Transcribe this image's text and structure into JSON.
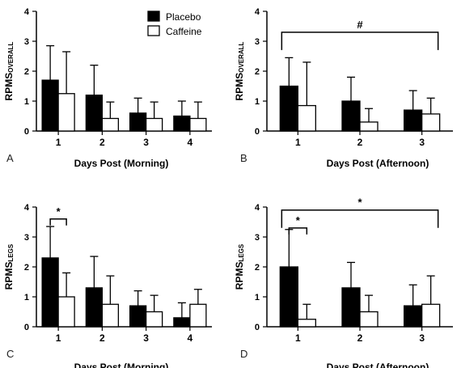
{
  "chart_data": [
    {
      "panel_label": "A",
      "type": "bar",
      "ylabel_main": "RPMS",
      "ylabel_sub": "OVERALL",
      "xlabel": "Days Post (Morning)",
      "categories": [
        "1",
        "2",
        "3",
        "4"
      ],
      "ylim": [
        0,
        4
      ],
      "yticks": [
        "0",
        "1",
        "2",
        "3",
        "4"
      ],
      "series": [
        {
          "name": "Placebo",
          "color": "#000000",
          "values": [
            1.7,
            1.2,
            0.6,
            0.5
          ],
          "error": [
            1.15,
            1.0,
            0.5,
            0.5
          ]
        },
        {
          "name": "Caffeine",
          "color": "#ffffff",
          "values": [
            1.25,
            0.42,
            0.42,
            0.42
          ],
          "error": [
            1.4,
            0.55,
            0.55,
            0.55
          ]
        }
      ],
      "legend": {
        "position": "top-right",
        "entries": [
          "Placebo",
          "Caffeine"
        ]
      },
      "brackets": []
    },
    {
      "panel_label": "B",
      "type": "bar",
      "ylabel_main": "RPMS",
      "ylabel_sub": "OVERALL",
      "xlabel": "Days Post (Afternoon)",
      "categories": [
        "1",
        "2",
        "3"
      ],
      "ylim": [
        0,
        4
      ],
      "yticks": [
        "0",
        "1",
        "2",
        "3",
        "4"
      ],
      "series": [
        {
          "name": "Placebo",
          "color": "#000000",
          "values": [
            1.5,
            1.0,
            0.7
          ],
          "error": [
            0.95,
            0.8,
            0.65
          ]
        },
        {
          "name": "Caffeine",
          "color": "#ffffff",
          "values": [
            0.85,
            0.3,
            0.57
          ],
          "error": [
            1.45,
            0.45,
            0.53
          ]
        }
      ],
      "brackets": [
        {
          "from_category": 0,
          "to_category": 2,
          "y": 3.3,
          "label": "#",
          "span": "groups"
        }
      ]
    },
    {
      "panel_label": "C",
      "type": "bar",
      "ylabel_main": "RPMS",
      "ylabel_sub": "LEGS",
      "xlabel": "Days Post (Morning)",
      "categories": [
        "1",
        "2",
        "3",
        "4"
      ],
      "ylim": [
        0,
        4
      ],
      "yticks": [
        "0",
        "1",
        "2",
        "3",
        "4"
      ],
      "series": [
        {
          "name": "Placebo",
          "color": "#000000",
          "values": [
            2.3,
            1.3,
            0.7,
            0.3
          ],
          "error": [
            1.05,
            1.05,
            0.5,
            0.5
          ]
        },
        {
          "name": "Caffeine",
          "color": "#ffffff",
          "values": [
            1.0,
            0.75,
            0.5,
            0.75
          ],
          "error": [
            0.8,
            0.95,
            0.55,
            0.5
          ]
        }
      ],
      "brackets": [
        {
          "from_category": 0,
          "to_category": 0,
          "y": 3.6,
          "label": "*",
          "span": "bars"
        }
      ]
    },
    {
      "panel_label": "D",
      "type": "bar",
      "ylabel_main": "RPMS",
      "ylabel_sub": "LEGS",
      "xlabel": "Days Post (Afternoon)",
      "categories": [
        "1",
        "2",
        "3"
      ],
      "ylim": [
        0,
        4
      ],
      "yticks": [
        "0",
        "1",
        "2",
        "3",
        "4"
      ],
      "series": [
        {
          "name": "Placebo",
          "color": "#000000",
          "values": [
            2.0,
            1.3,
            0.7
          ],
          "error": [
            1.25,
            0.85,
            0.7
          ]
        },
        {
          "name": "Caffeine",
          "color": "#ffffff",
          "values": [
            0.25,
            0.5,
            0.75
          ],
          "error": [
            0.5,
            0.55,
            0.95
          ]
        }
      ],
      "brackets": [
        {
          "from_category": 0,
          "to_category": 2,
          "y": 3.9,
          "label": "*",
          "span": "groups"
        },
        {
          "from_category": 0,
          "to_category": 0,
          "y": 3.3,
          "label": "*",
          "span": "bars"
        }
      ]
    }
  ]
}
